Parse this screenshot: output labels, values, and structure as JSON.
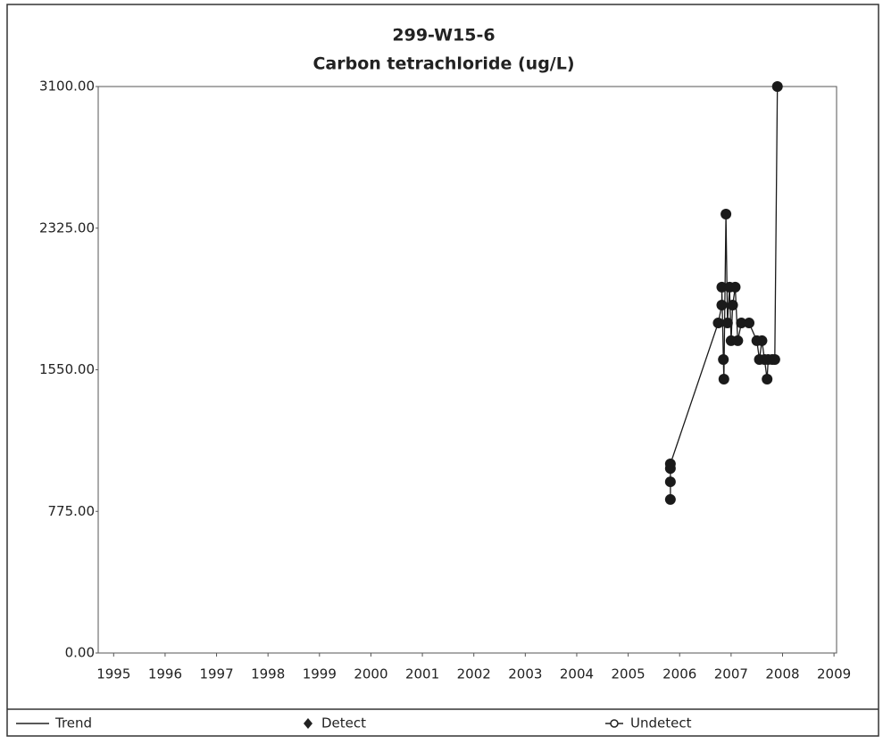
{
  "chart_data": {
    "type": "scatter",
    "title": "299-W15-6",
    "subtitle": "Carbon tetrachloride (ug/L)",
    "series": [
      {
        "name": "Detect",
        "color": "#1a1a1a",
        "x": [
          2005.82,
          2005.82,
          2005.82,
          2005.82,
          2006.75,
          2006.82,
          2006.82,
          2006.85,
          2006.86,
          2006.9,
          2006.93,
          2006.97,
          2007.0,
          2007.03,
          2007.08,
          2007.13,
          2007.2,
          2007.35,
          2007.5,
          2007.55,
          2007.6,
          2007.65,
          2007.7,
          2007.72,
          2007.8,
          2007.85,
          2007.9
        ],
        "values": [
          840,
          937,
          1010,
          1035,
          1806,
          1904,
          2002,
          1606,
          1499,
          2402,
          1806,
          2002,
          1709,
          1904,
          2002,
          1709,
          1806,
          1806,
          1709,
          1606,
          1709,
          1606,
          1499,
          1606,
          1606,
          1606,
          3100
        ]
      }
    ],
    "legend": [
      "Trend",
      "Detect",
      "Undetect"
    ],
    "xlim": [
      1994.7,
      2009.05
    ],
    "xticks": [
      1995,
      1996,
      1997,
      1998,
      1999,
      2000,
      2001,
      2002,
      2003,
      2004,
      2005,
      2006,
      2007,
      2008,
      2009
    ],
    "ylim": [
      0,
      3100
    ],
    "yticks": [
      {
        "value": 0,
        "label": "0.00"
      },
      {
        "value": 775,
        "label": "775.00"
      },
      {
        "value": 1550,
        "label": "1550.00"
      },
      {
        "value": 2325,
        "label": "2325.00"
      },
      {
        "value": 3100,
        "label": "3100.00"
      }
    ],
    "grid": false
  }
}
